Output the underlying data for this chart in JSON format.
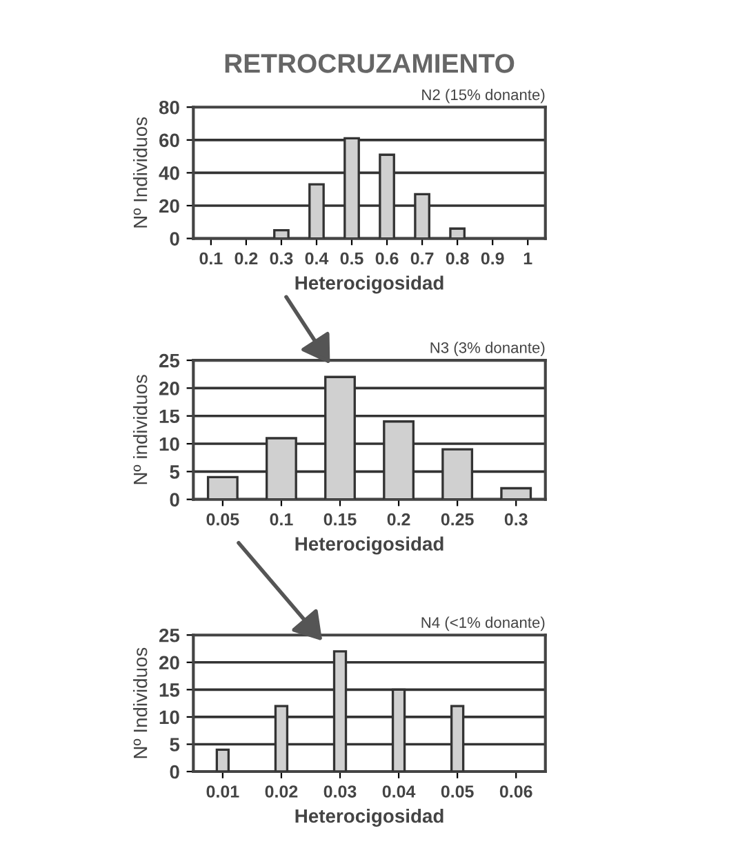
{
  "chart_data": [
    {
      "type": "bar",
      "title": "RETROCRUZAMIENTO",
      "subtitle": "N2 (15% donante)",
      "xlabel": "Heterocigosidad",
      "ylabel": "Nº Individuos",
      "categories": [
        "0.1",
        "0.2",
        "0.3",
        "0.4",
        "0.5",
        "0.6",
        "0.7",
        "0.8",
        "0.9",
        "1"
      ],
      "values": [
        null,
        null,
        5,
        33,
        61,
        51,
        27,
        6,
        null,
        null
      ],
      "color": "#d0d0d0",
      "ylim": [
        0,
        80
      ],
      "yticks": [
        0,
        20,
        40,
        60,
        80
      ],
      "grid": "y"
    },
    {
      "type": "bar",
      "subtitle": "N3 (3% donante)",
      "xlabel": "Heterocigosidad",
      "ylabel": "Nº individuos",
      "categories": [
        "0.05",
        "0.1",
        "0.15",
        "0.2",
        "0.25",
        "0.3"
      ],
      "values": [
        4,
        11,
        22,
        14,
        9,
        2
      ],
      "color": "#d0d0d0",
      "ylim": [
        0,
        25
      ],
      "yticks": [
        0,
        5,
        10,
        15,
        20,
        25
      ],
      "grid": "y"
    },
    {
      "type": "bar",
      "subtitle": "N4 (<1% donante)",
      "xlabel": "Heterocigosidad",
      "ylabel": "Nº Individuos",
      "categories": [
        "0.01",
        "0.02",
        "0.03",
        "0.04",
        "0.05",
        "0.06"
      ],
      "values": [
        4,
        12,
        22,
        15,
        12,
        null
      ],
      "color": "#d0d0d0",
      "ylim": [
        0,
        25
      ],
      "yticks": [
        0,
        5,
        10,
        15,
        20,
        25
      ],
      "grid": "y"
    }
  ]
}
